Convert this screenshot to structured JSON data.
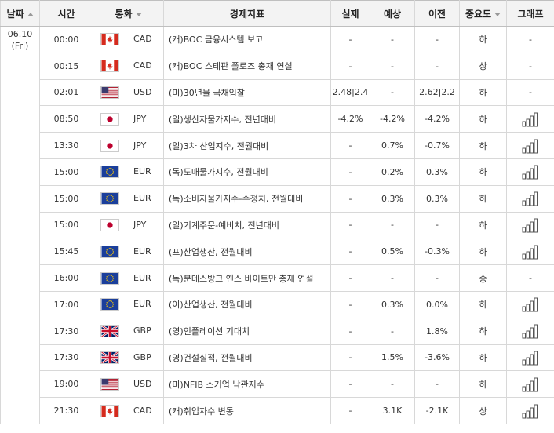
{
  "headers": {
    "date": "날짜",
    "time": "시간",
    "currency": "통화",
    "indicator": "경제지표",
    "actual": "실제",
    "forecast": "예상",
    "previous": "이전",
    "importance": "중요도",
    "graph": "그래프"
  },
  "date_cell": {
    "line1": "06.10",
    "line2": "(Fri)"
  },
  "rows": [
    {
      "time": "00:00",
      "flag": "CA",
      "currency": "CAD",
      "indicator": "(캐)BOC 금융시스템 보고",
      "actual": "-",
      "forecast": "-",
      "previous": "-",
      "importance": "하",
      "graph": "-"
    },
    {
      "time": "00:15",
      "flag": "CA",
      "currency": "CAD",
      "indicator": "(캐)BOC 스테판 폴로즈 총재 연설",
      "actual": "-",
      "forecast": "-",
      "previous": "-",
      "importance": "상",
      "graph": "-"
    },
    {
      "time": "02:01",
      "flag": "US",
      "currency": "USD",
      "indicator": "(미)30년물 국채입찰",
      "actual": "2.48|2.4",
      "forecast": "-",
      "previous": "2.62|2.2",
      "importance": "하",
      "graph": "-"
    },
    {
      "time": "08:50",
      "flag": "JP",
      "currency": "JPY",
      "indicator": "(일)생산자물가지수, 전년대비",
      "actual": "-4.2%",
      "forecast": "-4.2%",
      "previous": "-4.2%",
      "importance": "하",
      "graph": "bar-chart-icon"
    },
    {
      "time": "13:30",
      "flag": "JP",
      "currency": "JPY",
      "indicator": "(일)3차 산업지수, 전월대비",
      "actual": "-",
      "forecast": "0.7%",
      "previous": "-0.7%",
      "importance": "하",
      "graph": "bar-chart-icon"
    },
    {
      "time": "15:00",
      "flag": "EU",
      "currency": "EUR",
      "indicator": "(독)도매물가지수, 전월대비",
      "actual": "-",
      "forecast": "0.2%",
      "previous": "0.3%",
      "importance": "하",
      "graph": "bar-chart-icon"
    },
    {
      "time": "15:00",
      "flag": "EU",
      "currency": "EUR",
      "indicator": "(독)소비자물가지수-수정치, 전월대비",
      "actual": "-",
      "forecast": "0.3%",
      "previous": "0.3%",
      "importance": "하",
      "graph": "bar-chart-icon"
    },
    {
      "time": "15:00",
      "flag": "JP",
      "currency": "JPY",
      "indicator": "(일)기계주문-예비치, 전년대비",
      "actual": "-",
      "forecast": "-",
      "previous": "-",
      "importance": "하",
      "graph": "bar-chart-icon"
    },
    {
      "time": "15:45",
      "flag": "EU",
      "currency": "EUR",
      "indicator": "(프)산업생산, 전월대비",
      "actual": "-",
      "forecast": "0.5%",
      "previous": "-0.3%",
      "importance": "하",
      "graph": "bar-chart-icon"
    },
    {
      "time": "16:00",
      "flag": "EU",
      "currency": "EUR",
      "indicator": "(독)분데스방크 옌스 바이트만 총재 연설",
      "actual": "-",
      "forecast": "-",
      "previous": "-",
      "importance": "중",
      "graph": "-"
    },
    {
      "time": "17:00",
      "flag": "EU",
      "currency": "EUR",
      "indicator": "(이)산업생산, 전월대비",
      "actual": "-",
      "forecast": "0.3%",
      "previous": "0.0%",
      "importance": "하",
      "graph": "bar-chart-icon"
    },
    {
      "time": "17:30",
      "flag": "GB",
      "currency": "GBP",
      "indicator": "(영)인플레이션 기대치",
      "actual": "-",
      "forecast": "-",
      "previous": "1.8%",
      "importance": "하",
      "graph": "bar-chart-icon"
    },
    {
      "time": "17:30",
      "flag": "GB",
      "currency": "GBP",
      "indicator": "(영)건설실적, 전월대비",
      "actual": "-",
      "forecast": "1.5%",
      "previous": "-3.6%",
      "importance": "하",
      "graph": "bar-chart-icon"
    },
    {
      "time": "19:00",
      "flag": "US",
      "currency": "USD",
      "indicator": "(미)NFIB 소기업 낙관지수",
      "actual": "-",
      "forecast": "-",
      "previous": "-",
      "importance": "하",
      "graph": "bar-chart-icon"
    },
    {
      "time": "21:30",
      "flag": "CA",
      "currency": "CAD",
      "indicator": "(캐)취업자수 변동",
      "actual": "-",
      "forecast": "3.1K",
      "previous": "-2.1K",
      "importance": "상",
      "graph": "bar-chart-icon"
    }
  ]
}
